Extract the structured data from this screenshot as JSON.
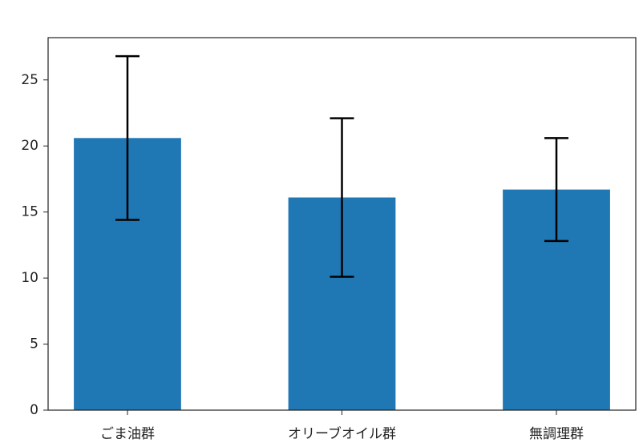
{
  "chart_data": {
    "type": "bar",
    "categories": [
      "ごま油群",
      "オリーブオイル群",
      "無調理群"
    ],
    "values": [
      20.6,
      16.1,
      16.7
    ],
    "errors": [
      6.2,
      6.0,
      3.9
    ],
    "color": "#1f77b4",
    "error_color": "#000000",
    "ylim": [
      0,
      28.2
    ],
    "yticks": [
      0,
      5,
      10,
      15,
      20,
      25
    ],
    "grid": false
  }
}
